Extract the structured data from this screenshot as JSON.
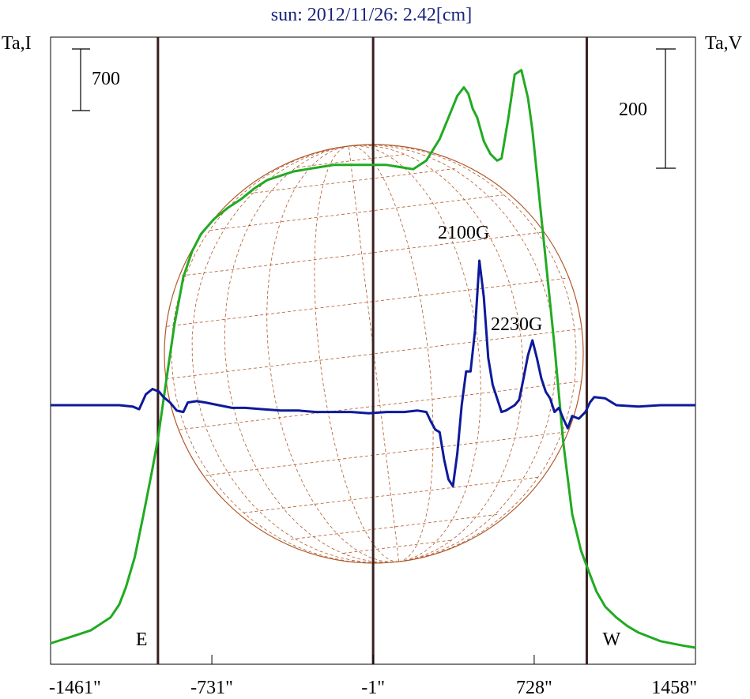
{
  "chart_data": {
    "type": "line",
    "title": "sun: 2012/11/26: 2.42[cm]",
    "ylabel_left": "Ta,I",
    "ylabel_right": "Ta,V",
    "xlim": [
      -1461,
      1458
    ],
    "x_ticks": [
      "-1461\"",
      "-731\"",
      "-1\"",
      "728\"",
      "1458\""
    ],
    "x_tick_values": [
      -1461,
      -731,
      -1,
      728,
      1458
    ],
    "scale_bars": {
      "left": "700",
      "right": "200"
    },
    "markers": [
      {
        "label": "E",
        "x": -975
      },
      {
        "label": "",
        "x": -1
      },
      {
        "label": "W",
        "x": 966
      }
    ],
    "annotations": [
      {
        "text": "2100G",
        "x": 440
      },
      {
        "text": "2230G",
        "x": 680
      }
    ],
    "colors": {
      "intensity": "#22aa22",
      "polarization": "#0d1a99",
      "markers": "#3a1f1f",
      "disk": "#b05a2a",
      "title": "#1a237e"
    },
    "series": [
      {
        "name": "",
        "axis": "left",
        "x": [
          -1461,
          -1370,
          -1280,
          -1190,
          -1150,
          -1120,
          -1080,
          -1040,
          -1000,
          -975,
          -940,
          -900,
          -860,
          -820,
          -780,
          -720,
          -660,
          -600,
          -540,
          -480,
          -420,
          -360,
          -300,
          -240,
          -180,
          -120,
          -60,
          0,
          60,
          120,
          180,
          240,
          300,
          340,
          380,
          410,
          430,
          450,
          470,
          500,
          530,
          560,
          580,
          610,
          640,
          670,
          700,
          720,
          750,
          780,
          820,
          860,
          900,
          940,
          980,
          1010,
          1050,
          1100,
          1150,
          1200,
          1300,
          1400,
          1458
        ],
        "y": [
          0.02,
          0.05,
          0.08,
          0.14,
          0.2,
          0.28,
          0.42,
          0.62,
          0.83,
          0.97,
          1.22,
          1.5,
          1.72,
          1.84,
          1.92,
          1.99,
          2.04,
          2.08,
          2.13,
          2.17,
          2.19,
          2.21,
          2.22,
          2.23,
          2.24,
          2.24,
          2.24,
          2.24,
          2.24,
          2.23,
          2.22,
          2.26,
          2.36,
          2.46,
          2.56,
          2.6,
          2.57,
          2.5,
          2.46,
          2.35,
          2.29,
          2.26,
          2.27,
          2.45,
          2.66,
          2.68,
          2.55,
          2.4,
          2.1,
          1.8,
          1.4,
          0.95,
          0.62,
          0.45,
          0.34,
          0.26,
          0.19,
          0.14,
          0.1,
          0.07,
          0.03,
          0.01,
          0.0
        ]
      },
      {
        "name": "",
        "axis": "right",
        "x": [
          -1461,
          -1300,
          -1150,
          -1090,
          -1060,
          -1030,
          -1000,
          -970,
          -950,
          -920,
          -890,
          -860,
          -840,
          -800,
          -760,
          -700,
          -640,
          -580,
          -500,
          -420,
          -340,
          -260,
          -180,
          -100,
          -20,
          60,
          140,
          200,
          240,
          260,
          280,
          300,
          320,
          340,
          360,
          380,
          400,
          420,
          440,
          460,
          480,
          500,
          520,
          540,
          560,
          580,
          600,
          620,
          640,
          660,
          680,
          700,
          720,
          740,
          760,
          780,
          800,
          820,
          840,
          860,
          880,
          900,
          930,
          960,
          980,
          1000,
          1050,
          1100,
          1200,
          1300,
          1458
        ],
        "y": [
          0,
          0,
          0,
          -0.01,
          -0.03,
          0.08,
          0.12,
          0.1,
          0.06,
          0.02,
          -0.04,
          -0.05,
          0.02,
          0.03,
          0.02,
          0.0,
          -0.02,
          -0.02,
          -0.03,
          -0.04,
          -0.04,
          -0.05,
          -0.05,
          -0.05,
          -0.06,
          -0.05,
          -0.05,
          -0.04,
          -0.05,
          -0.12,
          -0.18,
          -0.2,
          -0.4,
          -0.55,
          -0.6,
          -0.36,
          0.0,
          0.25,
          0.25,
          0.55,
          1.07,
          0.8,
          0.35,
          0.15,
          0.05,
          -0.05,
          -0.04,
          -0.02,
          0.0,
          0.04,
          0.2,
          0.37,
          0.48,
          0.35,
          0.2,
          0.1,
          0.05,
          -0.05,
          -0.02,
          -0.1,
          -0.17,
          -0.08,
          -0.1,
          -0.05,
          0.02,
          0.06,
          0.05,
          0.0,
          -0.01,
          0.0,
          0.0
        ]
      }
    ]
  }
}
